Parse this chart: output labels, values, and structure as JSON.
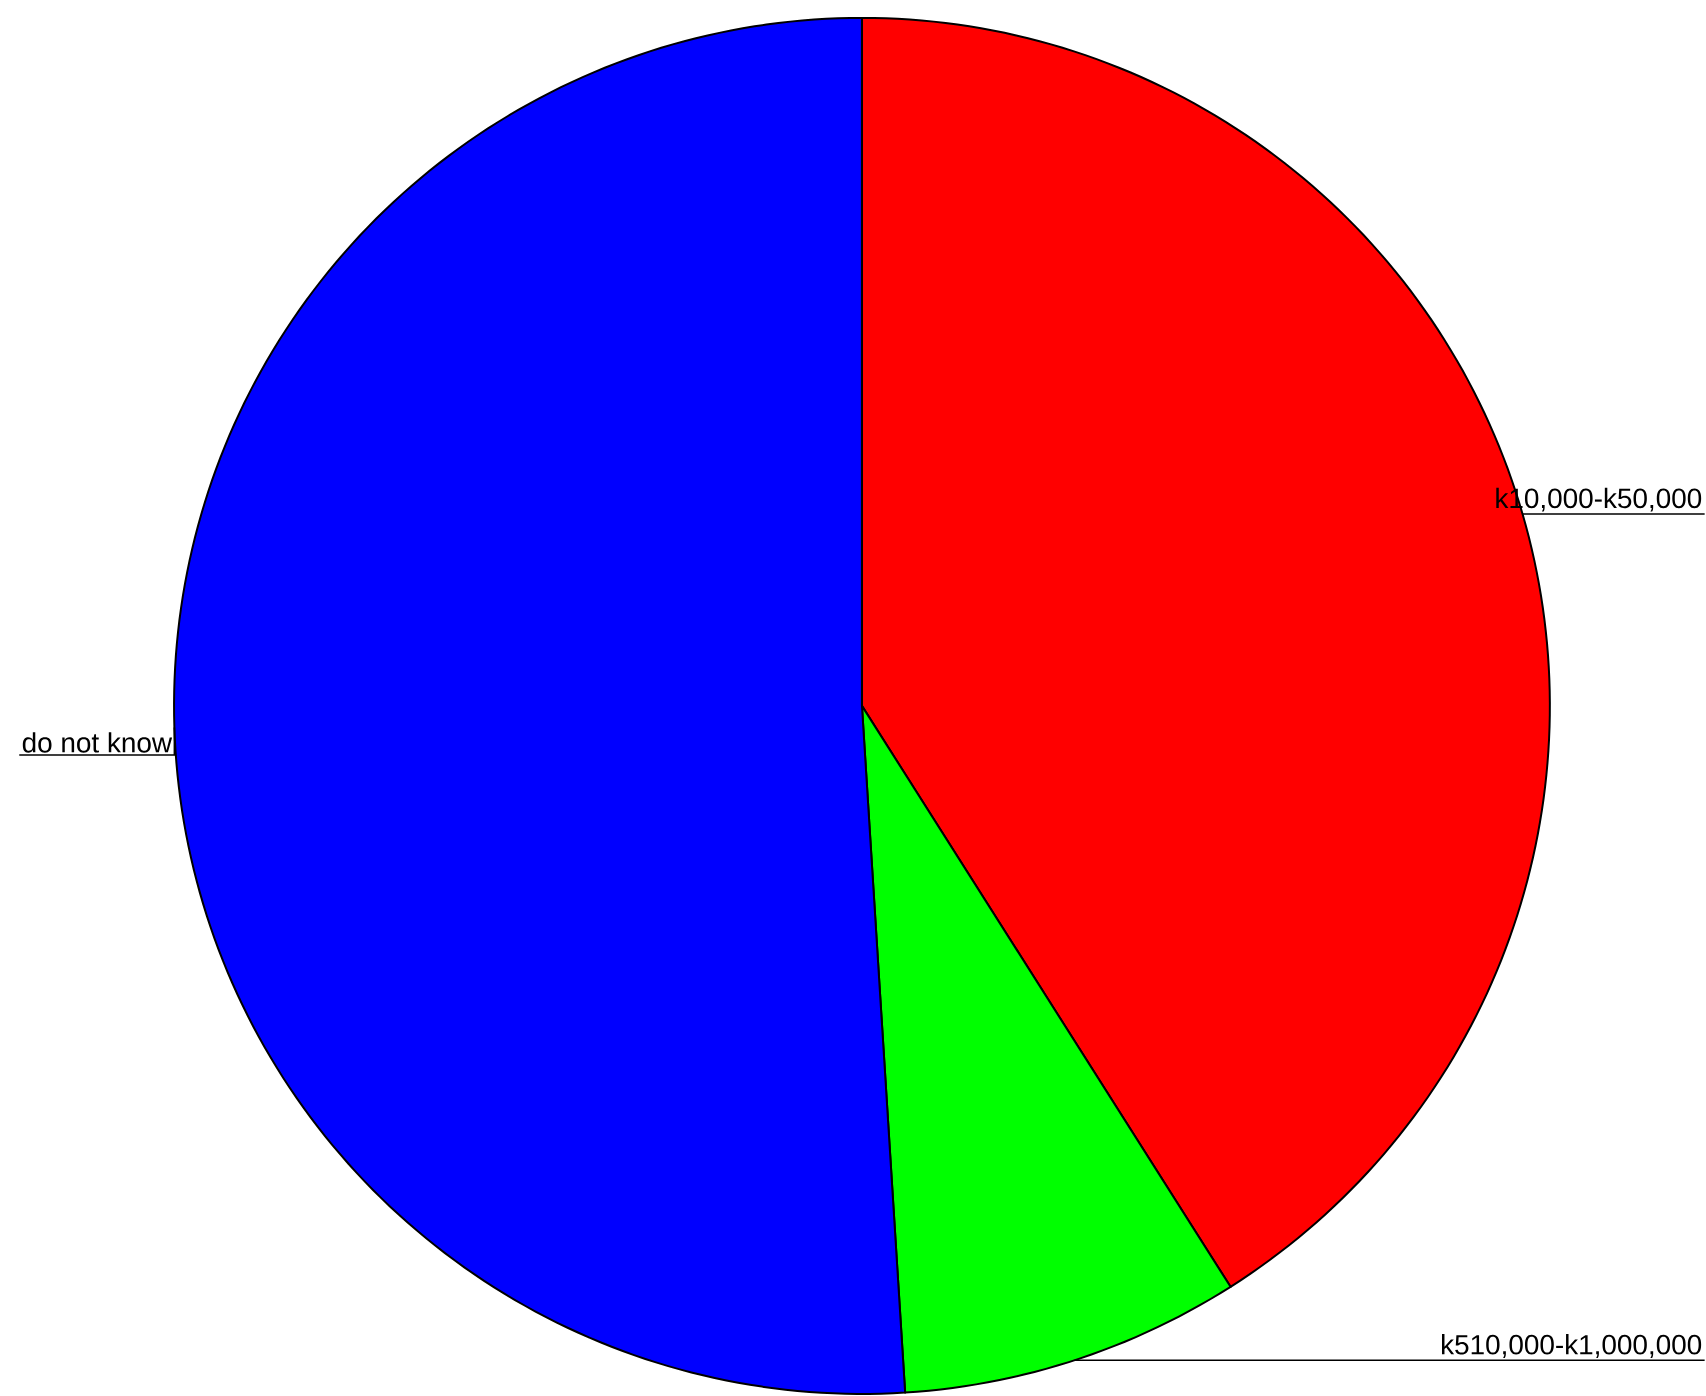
{
  "chart_data": {
    "type": "pie",
    "categories": [
      "k10,000-k50,000",
      "k510,000-k1,000,000",
      "do not know"
    ],
    "values": [
      41,
      8,
      51
    ],
    "colors": [
      "#ff0000",
      "#00ff00",
      "#0000ff"
    ]
  }
}
